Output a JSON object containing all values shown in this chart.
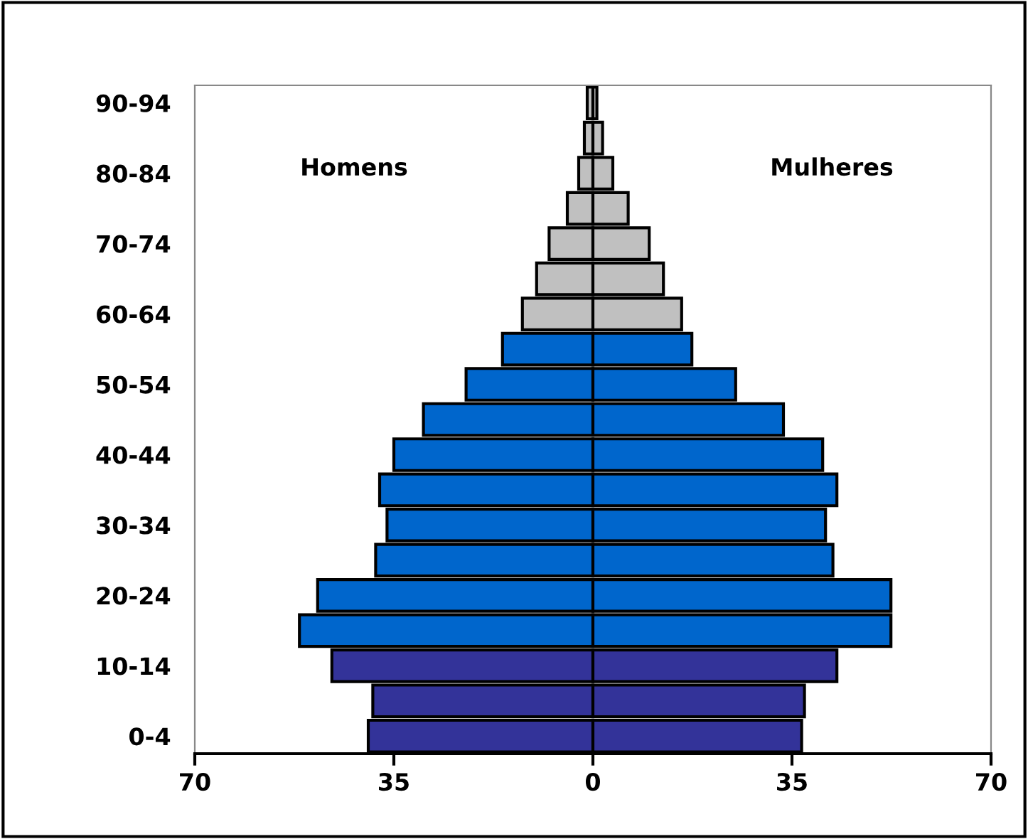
{
  "chart_data": {
    "type": "bar",
    "orientation": "horizontal",
    "stacked": true,
    "categories": [
      "90-94",
      null,
      "80-84",
      null,
      "70-74",
      null,
      "60-64",
      null,
      "50-54",
      null,
      "40-44",
      null,
      "30-34",
      null,
      "20-24",
      null,
      "10-14",
      null,
      "0-4"
    ],
    "series": [
      {
        "colors": [
          "#c0c0c0",
          "#c0c0c0",
          "#c0c0c0",
          "#c0c0c0",
          "#c0c0c0",
          "#c0c0c0",
          "#c0c0c0",
          "#0066cc",
          "#0066cc",
          "#0066cc",
          "#0066cc",
          "#0066cc",
          "#0066cc",
          "#0066cc",
          "#0066cc",
          "#0066cc",
          "#333399",
          "#333399",
          "#333399"
        ],
        "values": [
          -1.0,
          -1.5,
          -2.5,
          -4.5,
          -7.7,
          -9.9,
          -12.4,
          -15.9,
          -22.3,
          -29.8,
          -35.0,
          -37.5,
          -36.2,
          -38.2,
          -48.4,
          -51.6,
          -45.9,
          -38.7,
          -39.5
        ]
      },
      {
        "colors": [
          "#c0c0c0",
          "#c0c0c0",
          "#c0c0c0",
          "#c0c0c0",
          "#c0c0c0",
          "#c0c0c0",
          "#c0c0c0",
          "#0066cc",
          "#0066cc",
          "#0066cc",
          "#0066cc",
          "#0066cc",
          "#0066cc",
          "#0066cc",
          "#0066cc",
          "#0066cc",
          "#333399",
          "#333399",
          "#333399"
        ],
        "values": [
          0.7,
          1.7,
          3.5,
          6.2,
          9.9,
          12.4,
          15.6,
          17.4,
          25.1,
          33.5,
          40.4,
          42.9,
          40.9,
          42.2,
          52.4,
          52.4,
          42.9,
          37.2,
          36.7
        ]
      }
    ],
    "annotations": [
      "Homens",
      "Mulheres"
    ],
    "grid": false,
    "legend": false,
    "xlim": [
      -70,
      70
    ],
    "xticks": [
      {
        "value": -70,
        "label": "70"
      },
      {
        "value": -35,
        "label": "35"
      },
      0,
      35,
      70
    ]
  }
}
